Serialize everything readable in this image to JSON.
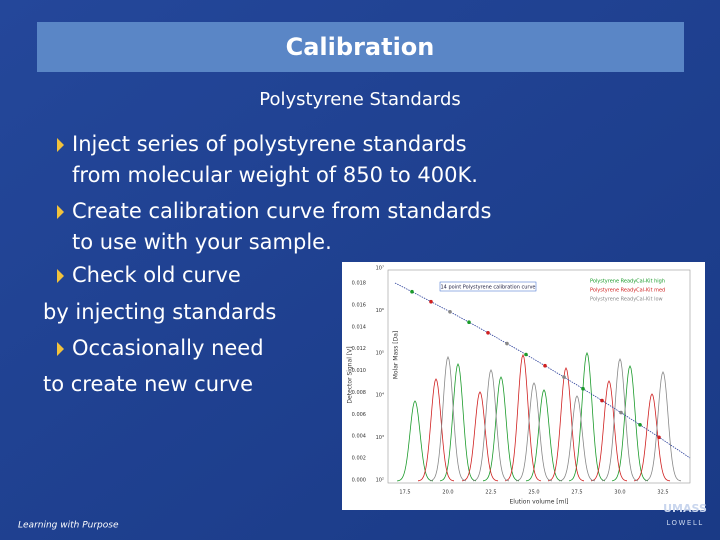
{
  "title": "Calibration",
  "subtitle": "Polystyrene Standards",
  "bullets": [
    {
      "lines": [
        "Inject series of polystyrene standards",
        "from molecular weight of 850 to 400K."
      ]
    },
    {
      "lines": [
        "Create calibration curve from standards",
        "to use with your sample."
      ]
    },
    {
      "lines": [
        "Check old curve",
        "by injecting standards"
      ]
    },
    {
      "lines": [
        "Occasionally need",
        "to create new curve"
      ]
    }
  ],
  "figure": {
    "title": "14 point Polystyrene calibration curve",
    "legend": [
      "Polystyrene ReadyCal-Kit high",
      "Polystyrene ReadyCal-Kit med",
      "Polystyrene ReadyCal-Kit low"
    ],
    "y_label": "Detector Signal [V]",
    "y_ticks": [
      "0.000",
      "0.002",
      "0.004",
      "0.006",
      "0.008",
      "0.010",
      "0.012",
      "0.014",
      "0.016",
      "0.018"
    ],
    "y2_label": "Molar Mass [Da]",
    "y2_ticks": [
      "10²",
      "10³",
      "10⁴",
      "10⁵",
      "10⁶",
      "10⁷"
    ],
    "x_label": "Elution volume [ml]",
    "x_ticks": [
      "17.5",
      "20.0",
      "22.5",
      "25.0",
      "27.5",
      "30.0",
      "32.5"
    ]
  },
  "footer": "Learning with Purpose",
  "logo": [
    "UMASS",
    "LOWELL"
  ]
}
